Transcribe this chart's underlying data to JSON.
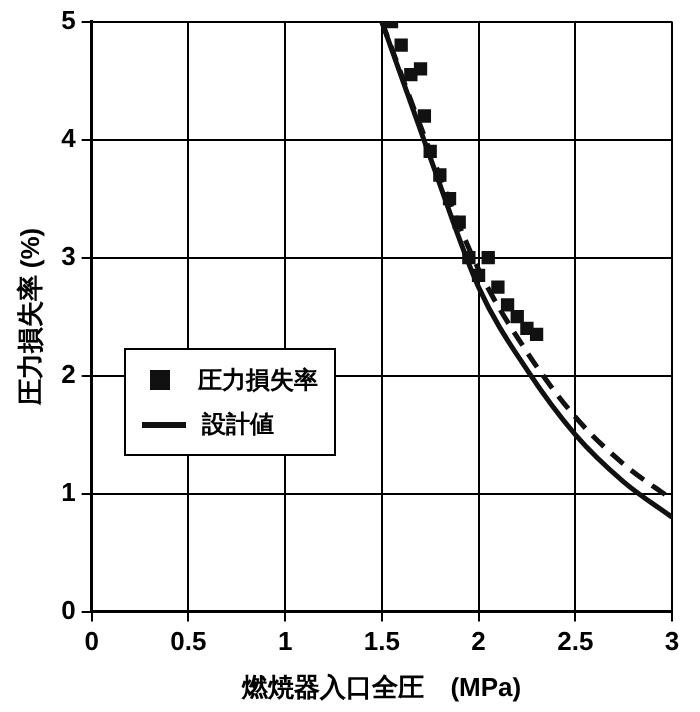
{
  "chart_data": {
    "type": "line",
    "xlabel": "燃焼器入口全圧　(MPa)",
    "ylabel": "圧力損失率 (%)",
    "xlim": [
      0,
      3
    ],
    "ylim": [
      0,
      5
    ],
    "xticks": [
      0,
      0.5,
      1,
      1.5,
      2,
      2.5,
      3
    ],
    "yticks": [
      0,
      1,
      2,
      3,
      4,
      5
    ],
    "grid": true,
    "legend": "left",
    "series": [
      {
        "name": "圧力損失率",
        "type": "scatter",
        "marker": "square",
        "color": "#111111",
        "x": [
          1.55,
          1.6,
          1.65,
          1.7,
          1.72,
          1.75,
          1.8,
          1.85,
          1.9,
          1.95,
          2.0,
          2.05,
          2.1,
          2.15,
          2.2,
          2.25,
          2.3
        ],
        "values": [
          5.0,
          4.8,
          4.55,
          4.6,
          4.2,
          3.9,
          3.7,
          3.5,
          3.3,
          3.0,
          2.85,
          3.0,
          2.75,
          2.6,
          2.5,
          2.4,
          2.35
        ]
      },
      {
        "name": "設計値",
        "marker": "none",
        "line_style": "solid",
        "color": "#111111",
        "x": [
          1.5,
          1.75,
          2.0,
          2.25,
          2.5,
          2.75,
          3.0
        ],
        "values": [
          5.0,
          3.85,
          2.75,
          2.05,
          1.5,
          1.1,
          0.8
        ]
      },
      {
        "marker": "none",
        "line_style": "dashed",
        "color": "#111111",
        "x": [
          1.5,
          1.75,
          2.0,
          2.25,
          2.5,
          2.75,
          3.0
        ],
        "values": [
          5.0,
          3.9,
          2.9,
          2.2,
          1.65,
          1.25,
          0.95
        ]
      }
    ]
  }
}
